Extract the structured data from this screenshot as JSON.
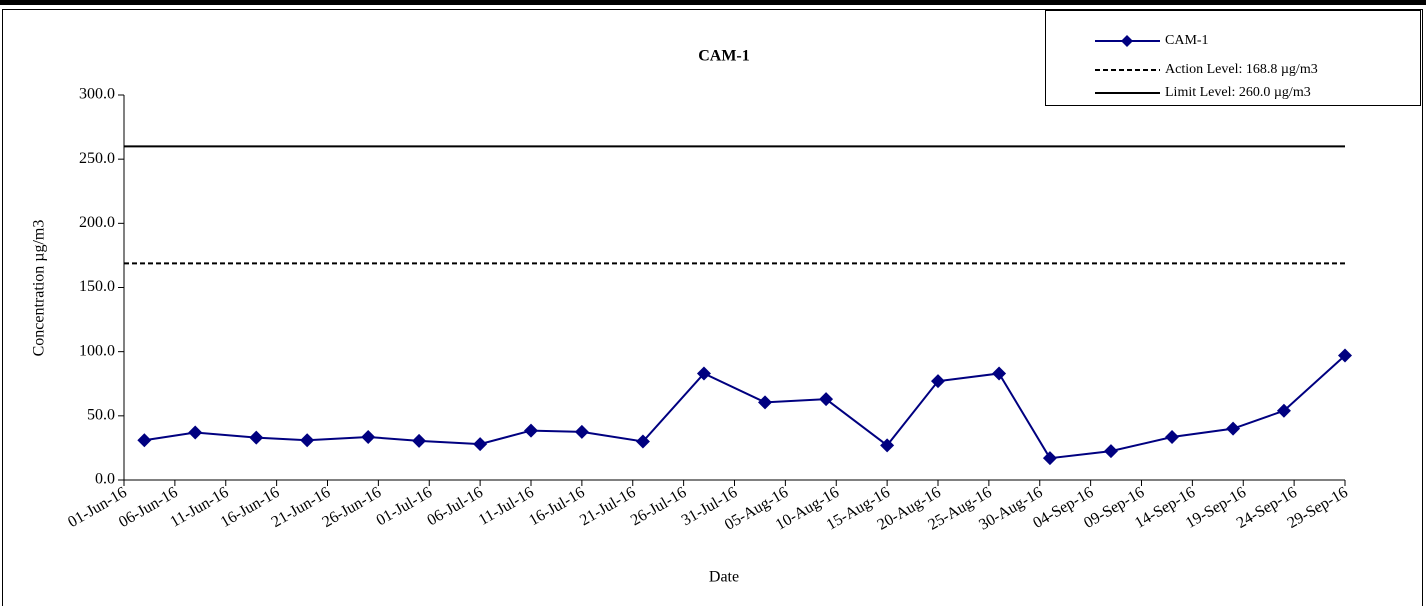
{
  "chart_data": {
    "type": "line",
    "title": "CAM-1",
    "x_label": "Date",
    "y_label": "Concentration µg/m3",
    "x": [
      "2016-06-03",
      "2016-06-08",
      "2016-06-14",
      "2016-06-19",
      "2016-06-25",
      "2016-06-30",
      "2016-07-06",
      "2016-07-11",
      "2016-07-16",
      "2016-07-22",
      "2016-07-28",
      "2016-08-03",
      "2016-08-09",
      "2016-08-15",
      "2016-08-20",
      "2016-08-26",
      "2016-08-31",
      "2016-09-06",
      "2016-09-12",
      "2016-09-18",
      "2016-09-23",
      "2016-09-29"
    ],
    "series": [
      {
        "name": "CAM-1",
        "color": "#000080",
        "marker": "diamond",
        "values": [
          31,
          37,
          33,
          31,
          33.5,
          30.5,
          28,
          38.5,
          37.5,
          30,
          83,
          60.5,
          63,
          27,
          77,
          83,
          17,
          22.5,
          33.5,
          40,
          54,
          97
        ]
      }
    ],
    "reference_lines": [
      {
        "name": "Action Level: 168.8 µg/m3",
        "value": 168.8,
        "color": "#000000",
        "style": "dashed"
      },
      {
        "name": "Limit Level: 260.0 µg/m3",
        "value": 260,
        "color": "#000000",
        "style": "solid"
      }
    ],
    "xlim": [
      "2016-06-01",
      "2016-09-29"
    ],
    "xticks": [
      {
        "value": "2016-06-01",
        "label": "01-Jun-16"
      },
      {
        "value": "2016-06-06",
        "label": "06-Jun-16"
      },
      {
        "value": "2016-06-11",
        "label": "11-Jun-16"
      },
      {
        "value": "2016-06-16",
        "label": "16-Jun-16"
      },
      {
        "value": "2016-06-21",
        "label": "21-Jun-16"
      },
      {
        "value": "2016-06-26",
        "label": "26-Jun-16"
      },
      {
        "value": "2016-07-01",
        "label": "01-Jul-16"
      },
      {
        "value": "2016-07-06",
        "label": "06-Jul-16"
      },
      {
        "value": "2016-07-11",
        "label": "11-Jul-16"
      },
      {
        "value": "2016-07-16",
        "label": "16-Jul-16"
      },
      {
        "value": "2016-07-21",
        "label": "21-Jul-16"
      },
      {
        "value": "2016-07-26",
        "label": "26-Jul-16"
      },
      {
        "value": "2016-07-31",
        "label": "31-Jul-16"
      },
      {
        "value": "2016-08-05",
        "label": "05-Aug-16"
      },
      {
        "value": "2016-08-10",
        "label": "10-Aug-16"
      },
      {
        "value": "2016-08-15",
        "label": "15-Aug-16"
      },
      {
        "value": "2016-08-20",
        "label": "20-Aug-16"
      },
      {
        "value": "2016-08-25",
        "label": "25-Aug-16"
      },
      {
        "value": "2016-08-30",
        "label": "30-Aug-16"
      },
      {
        "value": "2016-09-04",
        "label": "04-Sep-16"
      },
      {
        "value": "2016-09-09",
        "label": "09-Sep-16"
      },
      {
        "value": "2016-09-14",
        "label": "14-Sep-16"
      },
      {
        "value": "2016-09-19",
        "label": "19-Sep-16"
      },
      {
        "value": "2016-09-24",
        "label": "24-Sep-16"
      },
      {
        "value": "2016-09-29",
        "label": "29-Sep-16"
      }
    ],
    "ylim": [
      0,
      300
    ],
    "yticks": [
      {
        "value": 0,
        "label": "0.0"
      },
      {
        "value": 50,
        "label": "50.0"
      },
      {
        "value": 100,
        "label": "100.0"
      },
      {
        "value": 150,
        "label": "150.0"
      },
      {
        "value": 200,
        "label": "200.0"
      },
      {
        "value": 250,
        "label": "250.0"
      },
      {
        "value": 300,
        "label": "300.0"
      }
    ],
    "legend": "top-right",
    "grid": false
  }
}
